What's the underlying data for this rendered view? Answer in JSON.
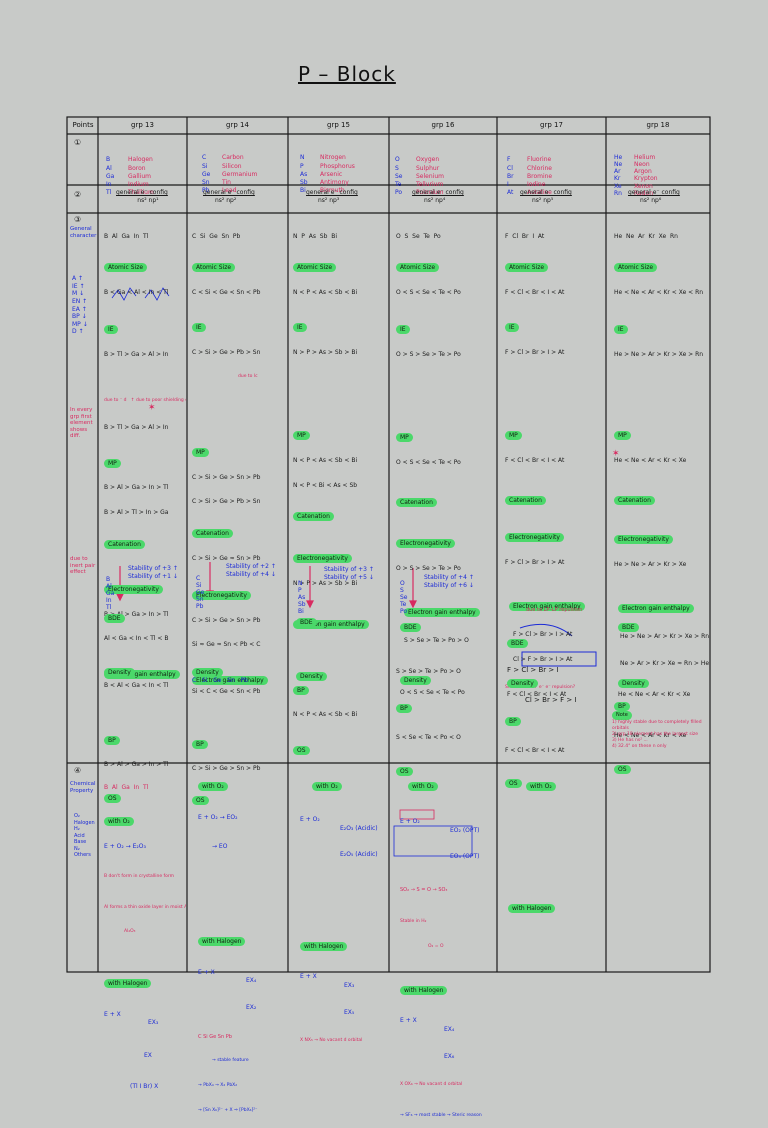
{
  "page": {
    "title": "P – Block"
  },
  "table": {
    "headers": [
      "Points",
      "grp 13",
      "grp 14",
      "grp 15",
      "grp 16",
      "grp 17",
      "grp 18"
    ],
    "row_markers": [
      "①",
      "②",
      "③",
      "④"
    ],
    "row1": {
      "g13": {
        "symbols": [
          "B",
          "Al",
          "Ga",
          "In",
          "Tl"
        ],
        "names": [
          "Halogen",
          "Boron",
          "Gallium",
          "Indium",
          "Thallium"
        ]
      },
      "g14": {
        "symbols": [
          "C",
          "Si",
          "Ge",
          "Sn",
          "Pb"
        ],
        "names": [
          "Carbon",
          "Silicon",
          "Germanium",
          "Tin",
          "Lead"
        ]
      },
      "g15": {
        "symbols": [
          "N",
          "P",
          "As",
          "Sb",
          "Bi"
        ],
        "names": [
          "Nitrogen",
          "Phosphorus",
          "Arsenic",
          "Antimony",
          "Bismuth"
        ]
      },
      "g16": {
        "symbols": [
          "O",
          "S",
          "Se",
          "Te",
          "Po"
        ],
        "names": [
          "Oxygen",
          "Sulphur",
          "Selenium",
          "Tellurium",
          "Polonium"
        ]
      },
      "g17": {
        "symbols": [
          "F",
          "Cl",
          "Br",
          "I",
          "At"
        ],
        "names": [
          "Fluorine",
          "Chlorine",
          "Bromine",
          "Iodine",
          "Astatine"
        ]
      },
      "g18": {
        "symbols": [
          "He",
          "Ne",
          "Ar",
          "Kr",
          "Xe",
          "Rn"
        ],
        "names": [
          "Helium",
          "Neon",
          "Argon",
          "Krypton",
          "Xenon",
          "Radon"
        ]
      }
    },
    "row2": {
      "label": "general e⁻ config",
      "configs": [
        "ns² np¹",
        "ns² np²",
        "ns² np³",
        "ns² np⁴",
        "ns² np⁵",
        "ns² np⁶"
      ]
    },
    "row3": {
      "points_label": "General character",
      "points_side": [
        "A ↑",
        "IE ↑",
        "M ↓",
        "EN ↑",
        "EA ↑",
        "BP ↓",
        "MP ↓",
        "D ↑"
      ],
      "side_note_1": "In every grp first element shows diff.",
      "side_note_2": "due to inert pair effect",
      "g13": {
        "elements": "B  Al  Ga  In  Tl",
        "atomic_size_label": "Atomic Size",
        "atomic_size": "B < Ga < Al < In < Tl",
        "ie_label": "IE",
        "ie": "B > Tl > Ga > Al > In",
        "ie_note": "due to ⁻ d   ↑ due to poor shielding of 4f⁻",
        "ie2": "B > Tl > Ga > Al > In",
        "mp_label": "MP",
        "mp1": "B > Al > Ga > In > Tl",
        "mp2": "B > Al > Tl > In > Ga",
        "cat_label": "Catenation",
        "en_label": "Electronegativity",
        "en1": "B > Al > Ga > In > Tl",
        "en2": "Al < Ga < In < Tl < B",
        "ega_label": "Electron gain enthalpy",
        "bp_label": "BP",
        "bp": "B > Al > Ga > In > Tl",
        "ox_label": "OS",
        "ox_elems": [
          "B",
          "Al",
          "Ga",
          "In",
          "Tl"
        ],
        "ox1": "Stability of +3 ↑",
        "ox2": "Stability of +1 ↓",
        "bde_label": "BDE",
        "density_label": "Density",
        "density": "B < Al < Ga < In < Tl"
      },
      "g14": {
        "elements": "C  Si  Ge  Sn  Pb",
        "atomic_size_label": "Atomic Size",
        "atomic_size": "C < Si < Ge < Sn < Pb",
        "ie_label": "IE",
        "ie": "C > Si > Ge > Pb > Sn",
        "ie_note": "due to lc",
        "mp_label": "MP",
        "mp1": "C > Si > Ge > Sn > Pb",
        "mp2": "C > Si > Ge > Pb > Sn",
        "cat_label": "Catenation",
        "cat": "C > Si > Ge ≈ Sn > Pb",
        "en_label": "Electronegativity",
        "en1": "C > Si > Ge > Sn > Pb",
        "en2": "Si ≈ Ge ≈ Sn < Pb < C",
        "ega_label": "Electron gain enthalpy",
        "bp_label": "BP",
        "bp": "C > Si > Ge > Sn > Pb",
        "ox_label": "OS",
        "ox_elems": [
          "C",
          "Si",
          "Ge",
          "Sn",
          "Pb"
        ],
        "ox1": "Stability of +2 ↑",
        "ox2": "Stability of +4 ↓",
        "density_label": "Density",
        "density_elems": "C   Si   Ge   Sn   Pb",
        "density": "Si < C < Ge < Sn < Pb"
      },
      "g15": {
        "elements": "N  P  As  Sb  Bi",
        "atomic_size_label": "Atomic Size",
        "atomic_size": "N < P < As < Sb < Bi",
        "ie_label": "IE",
        "ie": "N > P > As > Sb > Bi",
        "mp_label": "MP",
        "mp1": "N < P < As < Sb < Bi",
        "mp2": "N < P < Bi < As < Sb",
        "cat_label": "Catenation",
        "en_label": "Electronegativity",
        "en1": "N > P > As > Sb > Bi",
        "ega_label": "Electron gain enthalpy",
        "bp_label": "BP",
        "bp": "N < P < As < Sb < Bi",
        "ox_label": "OS",
        "ox_elems": [
          "N",
          "P",
          "As",
          "Sb",
          "Bi"
        ],
        "ox1": "Stability of +3 ↑",
        "ox2": "Stability of +5 ↓",
        "bde_label": "BDE",
        "density_label": "Density"
      },
      "g16": {
        "elements": "O  S  Se  Te  Po",
        "atomic_size_label": "Atomic Size",
        "atomic_size": "O < S < Se < Te < Po",
        "ie_label": "IE",
        "ie": "O > S > Se > Te > Po",
        "mp_label": "MP",
        "mp1": "O < S < Se < Te < Po",
        "cat_label": "Catenation",
        "en_label": "Electronegativity",
        "en1": "O > S > Se > Te > Po",
        "ega_label": "Electron gain enthalpy",
        "ega1": "S > Se > Te > Po > O",
        "ega2": "S > Se > Te > Po > O",
        "bp_label": "BP",
        "bp": "S < Se < Te < Po < O",
        "ox_label": "OS",
        "ox_elems": [
          "O",
          "S",
          "Se",
          "Te",
          "Po"
        ],
        "ox1": "Stability of +4 ↑",
        "ox2": "Stability of +6 ↓",
        "bde_label": "BDE",
        "density_label": "Density",
        "density": "O < S < Se < Te < Po"
      },
      "g17": {
        "elements": "F  Cl  Br  I  At",
        "atomic_size_label": "Atomic Size",
        "atomic_size": "F < Cl < Br < I < At",
        "ie_label": "IE",
        "ie": "F > Cl > Br > I > At",
        "mp_label": "MP",
        "mp1": "F < Cl < Br < I < At",
        "cat_label": "Catenation",
        "en_label": "Electronegativity",
        "en1": "F > Cl > Br > I > At",
        "ega_label": "Electron gain enthalpy",
        "ega1": "F > Cl > Br > I > At",
        "ega2": "Cl > F > Br > I > At",
        "ega_note": "Small size of F e⁻ e⁻ repulsion?",
        "bp_label": "BP",
        "bp": "F < Cl < Br < I < At",
        "os_label": "OS",
        "bde_note": "due to LP–LP repulsion",
        "bde_label": "BDE",
        "bde1": "F > Cl > Br > I",
        "bde2": "Cl > Br > F > I",
        "density_label": "Density",
        "density": "F < Cl < Br < I < At"
      },
      "g18": {
        "elements": "He  Ne  Ar  Kr  Xe  Rn",
        "atomic_size_label": "Atomic Size",
        "atomic_size": "He < Ne < Ar < Kr < Xe < Rn",
        "ie_label": "IE",
        "ie": "He > Ne > Ar > Kr > Xe > Rn",
        "mp_label": "MP",
        "mp1": "He < Ne < Ar < Kr < Xe",
        "cat_label": "Catenation",
        "en_label": "Electronegativity",
        "en1": "He > Ne > Ar > Kr > Xe",
        "ega_label": "Electron gain enthalpy",
        "ega1": "He > Ne > Ar > Kr > Xe > Rn",
        "ega2": "Ne > Ar > Kr > Xe ≈ Rn > He",
        "bp_label": "BP",
        "bp": "He < Ne < Ar < Kr < Xe",
        "os_label": "OS",
        "bde_label": "BDE",
        "density_label": "Density",
        "density": "He < Ne < Ar < Kr < Xe",
        "note_label": "Note",
        "note1": "1) highly stable due to completely filled orbitals",
        "note2": "2) grp 18 element has the largest size",
        "note3": "3) He has ns² ...",
        "note4": "4) 32.4° on these n only"
      }
    },
    "row4": {
      "points_label": "Chemical Property",
      "points_notes": [
        "O₂",
        "Halogen",
        "H₂",
        "Acid",
        "Base",
        "N₂",
        "Others"
      ],
      "g13": {
        "elements": "B  Al  Ga  In  Tl",
        "o2_label": "with O₂",
        "o2_reac": "E + O₂ → E₂O₃",
        "o2_note1": "B don't form in crystalline form",
        "o2_note2": "Al forms a thin oxide layer in moist Air",
        "o2_note3": "Al₂O₃",
        "hal_label": "with Halogen",
        "hal1": "E + X",
        "hal2": "EX₃",
        "hal3": "EX",
        "hal4": "(Tl I Br) X"
      },
      "g14": {
        "o2_label": "with O₂",
        "o2_reac1": "E + O₂ → EO₂",
        "o2_reac2": "→ EO",
        "hal_label": "with Halogen",
        "hal1": "E + X",
        "hal2": "EX₄",
        "hal3": "EX₂",
        "hal_elems": "C Si Ge Sn Pb",
        "hal_note1": "→ stable feature",
        "hal_note2": "→ PbX₄ → X₂ PbX₂",
        "hal_note3": "→ [Sn X₆]²⁻ + X ⇒ [PbX₆]²⁻"
      },
      "g15": {
        "o2_label": "with O₂",
        "o2_reac1": "E + O₂",
        "o2_reac2": "E₂O₃ (Acidic)",
        "o2_reac3": "E₂O₅ (Acidic)",
        "hal_label": "with Halogen",
        "hal1": "E + X",
        "hal2": "EX₃",
        "hal3": "EX₅",
        "hal_note": "X NX₅ → No vacant d orbital"
      },
      "g16": {
        "o2_label": "with O₂",
        "o2_reac1": "E + O₂",
        "o2_reac2": "EO₂ (OPT)",
        "o2_reac3": "EO₃ (OPT)",
        "o2_note1": "SO₂ → S = O → SO₃",
        "o2_note2": "Stable in H₂",
        "o2_note3": "O₂ = O",
        "hal_label": "with Halogen",
        "hal1": "E + X",
        "hal2": "EX₄",
        "hal3": "EX₆",
        "hal_note1": "X OX₆ → No vacant d orbital",
        "hal_note2": "→ SF₆ → most stable → Steric reason"
      },
      "g17": {
        "o2_label": "with O₂",
        "hal_label": "with Halogen"
      }
    }
  },
  "colors": {
    "green_highlight": "#4bd86a",
    "ink_blue": "#1c2bd6",
    "ink_red": "#d82a60",
    "background": "#c8cac8"
  }
}
